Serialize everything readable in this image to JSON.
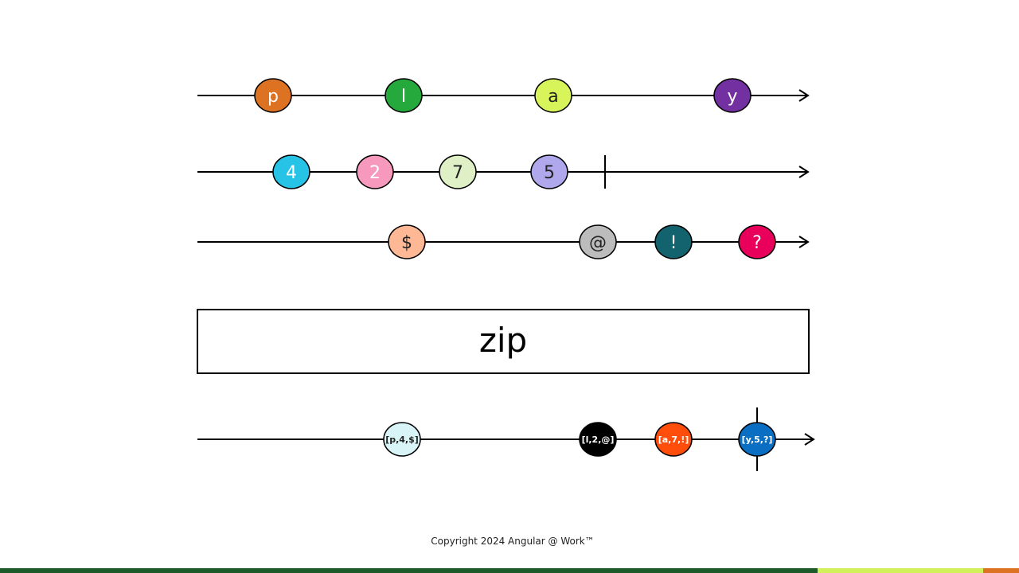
{
  "operator": {
    "label": "zip"
  },
  "streams": [
    {
      "name": "input-1",
      "completed": false,
      "marbles": [
        {
          "label": "p",
          "fill": "#dc7222",
          "text_color": "#ffffff"
        },
        {
          "label": "l",
          "fill": "#25a83c",
          "text_color": "#ffffff"
        },
        {
          "label": "a",
          "fill": "#d7f55a",
          "text_color": "#222222"
        },
        {
          "label": "y",
          "fill": "#7230a0",
          "text_color": "#ffffff"
        }
      ]
    },
    {
      "name": "input-2",
      "completed": true,
      "marbles": [
        {
          "label": "4",
          "fill": "#27c3e6",
          "text_color": "#ffffff"
        },
        {
          "label": "2",
          "fill": "#f799bd",
          "text_color": "#ffffff"
        },
        {
          "label": "7",
          "fill": "#dff0c6",
          "text_color": "#222222"
        },
        {
          "label": "5",
          "fill": "#b0a8ec",
          "text_color": "#222222"
        }
      ]
    },
    {
      "name": "input-3",
      "completed": false,
      "marbles": [
        {
          "label": "$",
          "fill": "#ffb895",
          "text_color": "#222222"
        },
        {
          "label": "@",
          "fill": "#bcbcbc",
          "text_color": "#222222"
        },
        {
          "label": "!",
          "fill": "#12636e",
          "text_color": "#ffffff"
        },
        {
          "label": "?",
          "fill": "#e8005a",
          "text_color": "#ffffff"
        }
      ]
    },
    {
      "name": "output",
      "completed": true,
      "marbles": [
        {
          "label": "[p,4,$]",
          "fill": "#d9f4f7",
          "text_color": "#222222"
        },
        {
          "label": "[l,2,@]",
          "fill": "#000000",
          "text_color": "#ffffff"
        },
        {
          "label": "[a,7,!]",
          "fill": "#ff4e0c",
          "text_color": "#ffffff"
        },
        {
          "label": "[y,5,?]",
          "fill": "#0a6fc2",
          "text_color": "#ffffff"
        }
      ]
    }
  ],
  "footer": {
    "copyright": "Copyright 2024 Angular @ Work™"
  },
  "colors": {
    "line": "#000000",
    "footer_bar_green": "#1d5a2a",
    "footer_bar_lime": "#d2f05a",
    "footer_bar_orange": "#dc7222"
  }
}
